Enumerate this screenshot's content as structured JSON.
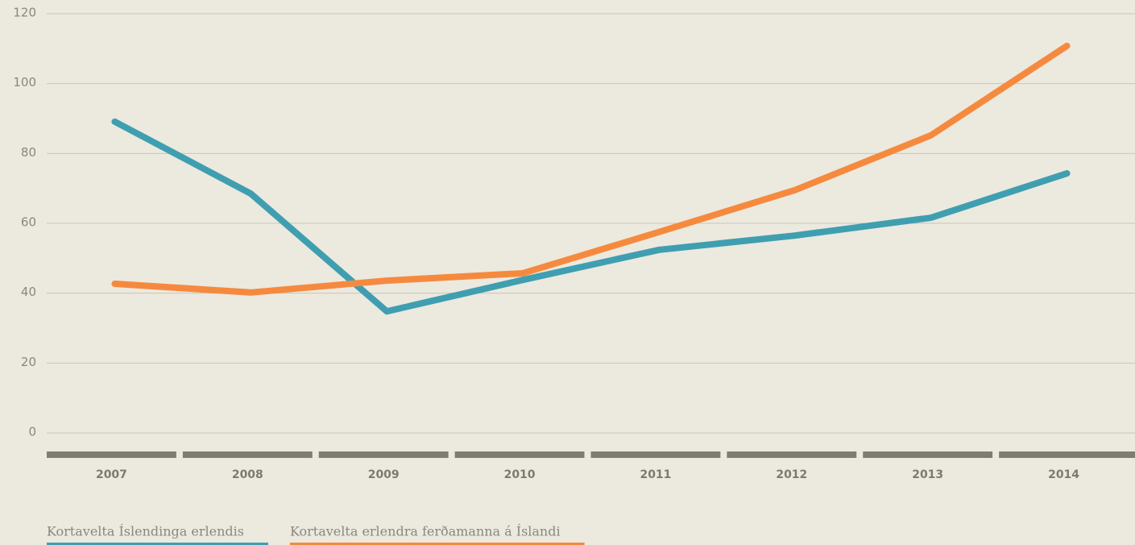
{
  "chart_data": {
    "type": "line",
    "categories": [
      "2007",
      "2008",
      "2009",
      "2010",
      "2011",
      "2012",
      "2013",
      "2014"
    ],
    "series": [
      {
        "name": "Kortavelta Íslendinga erlendis",
        "color": "#3f9fb0",
        "values": [
          89.1,
          68.5,
          34.8,
          43.8,
          52.4,
          56.5,
          61.6,
          74.3
        ]
      },
      {
        "name": "Kortavelta erlendra ferðamanna á Íslandi",
        "color": "#f58a3f",
        "values": [
          42.7,
          40.2,
          43.6,
          45.7,
          57.5,
          69.5,
          85.2,
          110.8
        ]
      }
    ],
    "ylim": [
      0,
      120
    ],
    "yticks": [
      0,
      20,
      40,
      60,
      80,
      100,
      120
    ],
    "grid": true
  }
}
